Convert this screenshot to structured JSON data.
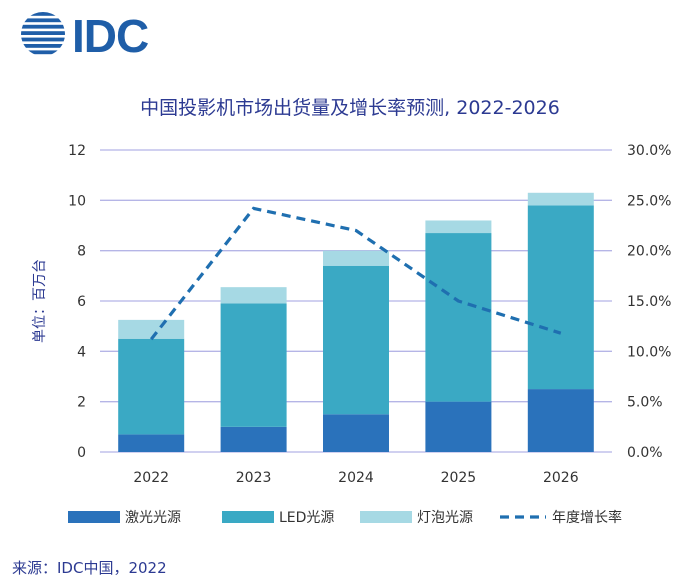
{
  "logo": {
    "text": "IDC",
    "color": "#1f5ea8"
  },
  "title": "中国投影机市场出货量及增长率预测, 2022-2026",
  "source": "来源：IDC中国，2022",
  "colors": {
    "laser": "#2a72bb",
    "led": "#3aa9c4",
    "bulb": "#a6d9e4",
    "growth": "#1f6fb0",
    "grid": "#b5b5e6",
    "title": "#2c3a92"
  },
  "chart_data": {
    "type": "bar",
    "stacked": true,
    "title": "中国投影机市场出货量及增长率预测, 2022-2026",
    "categories": [
      "2022",
      "2023",
      "2024",
      "2025",
      "2026"
    ],
    "ylabel": "单位：百万台",
    "ylim": [
      0,
      12
    ],
    "yticks": [
      "0",
      "2",
      "4",
      "6",
      "8",
      "10",
      "12"
    ],
    "y2lim": [
      0,
      30
    ],
    "y2ticks": [
      "0.0%",
      "5.0%",
      "10.0%",
      "15.0%",
      "20.0%",
      "25.0%",
      "30.0%"
    ],
    "grid": true,
    "legend_position": "bottom",
    "series": [
      {
        "name": "激光光源",
        "kind": "bar",
        "values": [
          0.7,
          1.0,
          1.5,
          2.0,
          2.5
        ]
      },
      {
        "name": "LED光源",
        "kind": "bar",
        "values": [
          3.8,
          4.9,
          5.9,
          6.7,
          7.3
        ]
      },
      {
        "name": "灯泡光源",
        "kind": "bar",
        "values": [
          0.75,
          0.65,
          0.6,
          0.5,
          0.5
        ]
      },
      {
        "name": "年度增长率",
        "kind": "line",
        "axis": "right",
        "unit": "%",
        "style": "dashed",
        "values": [
          11.2,
          24.2,
          22.0,
          15.0,
          11.8
        ]
      }
    ]
  }
}
